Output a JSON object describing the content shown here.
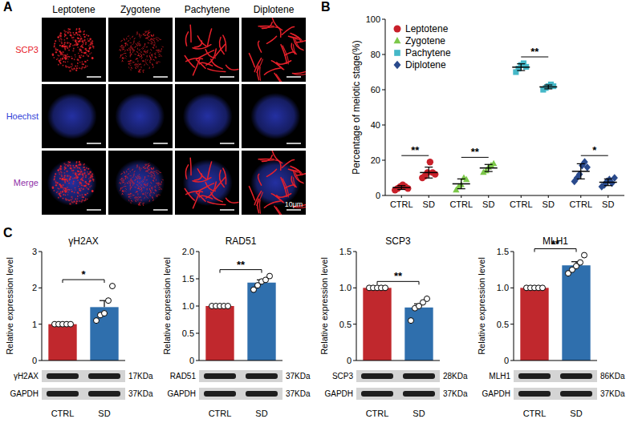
{
  "panel_labels": [
    "A",
    "B",
    "C"
  ],
  "micrographs": {
    "stages": [
      "Leptotene",
      "Zygotene",
      "Pachytene",
      "Diplotene"
    ],
    "channels": [
      {
        "name": "SCP3",
        "color": "#e8202a"
      },
      {
        "name": "Hoechst",
        "color": "#3040d8"
      },
      {
        "name": "Merge",
        "color": "#9030a8"
      }
    ],
    "scale_bar": "10μm"
  },
  "chart_data": [
    {
      "type": "scatter",
      "y_label": "Percentage of meiotic stage(%)",
      "categories": [
        "CTRL",
        "SD",
        "CTRL",
        "SD",
        "CTRL",
        "SD",
        "CTRL",
        "SD"
      ],
      "ylim": [
        0,
        100
      ],
      "yticks": [
        0,
        20,
        40,
        60,
        80,
        100
      ],
      "grid": false,
      "legend": "top-left",
      "series": [
        {
          "name": "Leptotene",
          "color": "#c8202a",
          "marker": "circle",
          "values": [
            [
              3,
              4,
              5,
              6,
              5,
              4
            ],
            [
              10,
              11,
              13,
              19,
              13,
              12
            ],
            null,
            null,
            null,
            null,
            null,
            null
          ],
          "mean": [
            4.5,
            13,
            null,
            null,
            null,
            null,
            null,
            null
          ],
          "error": [
            1.1,
            3.1,
            null,
            null,
            null,
            null,
            null,
            null
          ],
          "significance": "**"
        },
        {
          "name": "Zygotene",
          "color": "#7cc84a",
          "marker": "triangle",
          "values": [
            null,
            null,
            [
              3,
              5,
              6,
              10,
              9
            ],
            [
              13,
              14,
              16,
              17,
              18
            ],
            null,
            null,
            null,
            null
          ],
          "mean": [
            null,
            null,
            6.6,
            15.6,
            null,
            null,
            null,
            null
          ],
          "error": [
            null,
            null,
            2.8,
            2,
            null,
            null,
            null,
            null
          ],
          "significance": "**"
        },
        {
          "name": "Pachytene",
          "color": "#45b8c8",
          "marker": "square",
          "values": [
            null,
            null,
            null,
            null,
            [
              70,
              72,
              74,
              75,
              73
            ],
            [
              60,
              61,
              62,
              63,
              62
            ],
            null,
            null
          ],
          "mean": [
            null,
            null,
            null,
            null,
            72.8,
            61.6,
            null,
            null
          ],
          "error": [
            null,
            null,
            null,
            null,
            1.9,
            1.1,
            null,
            null
          ],
          "significance": "**"
        },
        {
          "name": "Diplotene",
          "color": "#2a4a8c",
          "marker": "diamond",
          "values": [
            null,
            null,
            null,
            null,
            null,
            null,
            [
              8,
              10,
              12,
              17,
              19,
              16
            ],
            [
              5,
              6,
              8,
              9,
              7,
              10
            ]
          ],
          "mean": [
            null,
            null,
            null,
            null,
            null,
            null,
            13.7,
            7.5
          ],
          "error": [
            null,
            null,
            null,
            null,
            null,
            null,
            4.3,
            1.9
          ],
          "significance": "*"
        }
      ]
    },
    {
      "type": "bar",
      "title": "γH2AX",
      "y_label": "Relative expression level",
      "categories": [
        "CTRL",
        "SD"
      ],
      "colors": [
        "#c0282d",
        "#2f6fad"
      ],
      "values": [
        1,
        1.47
      ],
      "error": [
        0,
        0.18
      ],
      "points": [
        [
          1,
          1,
          1,
          1,
          1
        ],
        [
          1.1,
          1.25,
          1.3,
          1.65,
          2.05
        ]
      ],
      "ylim": [
        0,
        3
      ],
      "yticks": [
        0,
        1,
        2,
        3
      ],
      "grid": false,
      "significance": "*",
      "blots": [
        {
          "name": "γH2AX",
          "size": "17KDa"
        },
        {
          "name": "GAPDH",
          "size": "37KDa"
        }
      ]
    },
    {
      "type": "bar",
      "title": "RAD51",
      "y_label": "Relative expression level",
      "categories": [
        "CTRL",
        "SD"
      ],
      "colors": [
        "#c0282d",
        "#2f6fad"
      ],
      "values": [
        1,
        1.43
      ],
      "error": [
        0,
        0.05
      ],
      "points": [
        [
          1,
          1,
          1,
          1,
          1
        ],
        [
          1.3,
          1.38,
          1.45,
          1.48,
          1.55
        ]
      ],
      "ylim": [
        0,
        2
      ],
      "yticks": [
        0,
        0.5,
        {
          "value": 1,
          "label": "1.0"
        },
        1.5,
        {
          "value": 2,
          "label": "2.0"
        }
      ],
      "grid": false,
      "significance": "**",
      "blots": [
        {
          "name": "RAD51",
          "size": "37KDa"
        },
        {
          "name": "GAPDH",
          "size": "37KDa"
        }
      ]
    },
    {
      "type": "bar",
      "title": "SCP3",
      "y_label": "Relative expression level",
      "categories": [
        "CTRL",
        "SD"
      ],
      "colors": [
        "#c0282d",
        "#2f6fad"
      ],
      "values": [
        1,
        0.73
      ],
      "error": [
        0,
        0.05
      ],
      "points": [
        [
          1,
          1,
          1,
          1,
          1
        ],
        [
          0.55,
          0.72,
          0.75,
          0.8,
          0.85
        ]
      ],
      "ylim": [
        0,
        1.5
      ],
      "yticks": [
        0,
        0.5,
        {
          "value": 1,
          "label": "1.0"
        },
        1.5
      ],
      "grid": false,
      "significance": "**",
      "blots": [
        {
          "name": "SCP3",
          "size": "28KDa"
        },
        {
          "name": "GAPDH",
          "size": "37KDa"
        }
      ]
    },
    {
      "type": "bar",
      "title": "MLH1",
      "y_label": "Relative expression level",
      "categories": [
        "CTRL",
        "SD"
      ],
      "colors": [
        "#c0282d",
        "#2f6fad"
      ],
      "values": [
        1,
        1.31
      ],
      "error": [
        0,
        0.05
      ],
      "points": [
        [
          1,
          1,
          1,
          1,
          1
        ],
        [
          1.2,
          1.25,
          1.3,
          1.35,
          1.45
        ]
      ],
      "ylim": [
        0,
        1.5
      ],
      "yticks": [
        0,
        0.5,
        {
          "value": 1,
          "label": "1.0"
        },
        1.5
      ],
      "grid": false,
      "significance": "**",
      "blots": [
        {
          "name": "MLH1",
          "size": "86KDa"
        },
        {
          "name": "GAPDH",
          "size": "37KDa"
        }
      ]
    }
  ]
}
